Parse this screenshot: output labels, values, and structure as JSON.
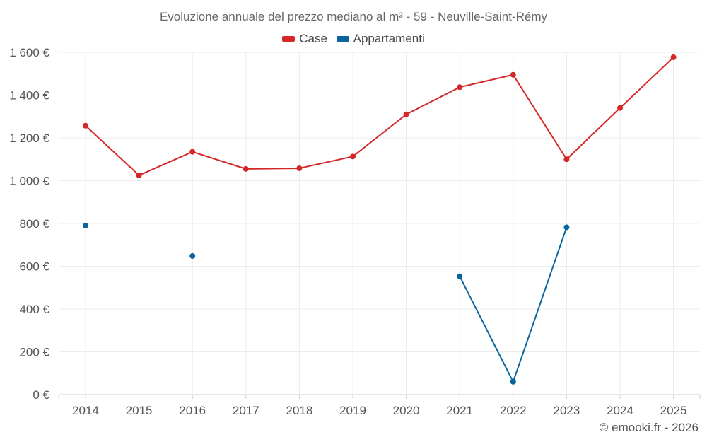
{
  "chart_data": {
    "type": "line",
    "title": "Evoluzione annuale del prezzo mediano al m² - 59 - Neuville-Saint-Rémy",
    "xlabel": "",
    "ylabel": "",
    "categories": [
      "2014",
      "2015",
      "2016",
      "2017",
      "2018",
      "2019",
      "2020",
      "2021",
      "2022",
      "2023",
      "2024",
      "2025"
    ],
    "ylim": [
      0,
      1600
    ],
    "yticks": [
      0,
      200,
      400,
      600,
      800,
      1000,
      1200,
      1400,
      1600
    ],
    "ytick_labels": [
      "0 €",
      "200 €",
      "400 €",
      "600 €",
      "800 €",
      "1 000 €",
      "1 200 €",
      "1 400 €",
      "1 600 €"
    ],
    "grid": true,
    "legend_position": "top-center",
    "series": [
      {
        "name": "Case",
        "color": "#d62728",
        "values": [
          1257,
          1025,
          1135,
          1055,
          1058,
          1113,
          1310,
          1437,
          1495,
          1100,
          1340,
          1577
        ]
      },
      {
        "name": "Appartamenti",
        "color": "#0a64a0",
        "values": [
          790,
          null,
          648,
          null,
          null,
          null,
          null,
          553,
          60,
          782,
          null,
          null
        ]
      }
    ]
  },
  "credit": "© emooki.fr - 2026"
}
